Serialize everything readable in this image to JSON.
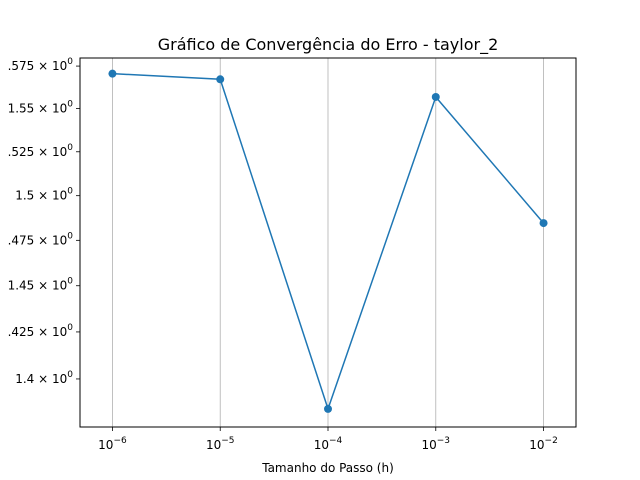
{
  "chart_data": {
    "type": "line",
    "title": "Gráfico de Convergência do Erro - taylor_2",
    "xlabel": "Tamanho do Passo (h)",
    "ylabel": "",
    "x_scale": "log",
    "y_scale": "log",
    "x": [
      1e-06,
      1e-05,
      0.0001,
      0.001,
      0.01
    ],
    "x_tick_values": [
      1e-06,
      1e-05,
      0.0001,
      0.001,
      0.01
    ],
    "x_tick_bases": [
      "10",
      "10",
      "10",
      "10",
      "10"
    ],
    "x_tick_exponents": [
      "−6",
      "−5",
      "−4",
      "−3",
      "−2"
    ],
    "xlim": [
      5e-07,
      0.02
    ],
    "series": [
      {
        "values": [
          1.5705,
          1.5672,
          1.3843,
          1.5568,
          1.4846
        ],
        "color": "#1f77b4",
        "marker": "circle"
      }
    ],
    "y_ticks": [
      {
        "value": 1.4,
        "label": "1.4 × 10",
        "exp": "0"
      },
      {
        "value": 1.425,
        "label": ".425 × 10",
        "exp": "0"
      },
      {
        "value": 1.45,
        "label": "1.45 × 10",
        "exp": "0"
      },
      {
        "value": 1.475,
        "label": ".475 × 10",
        "exp": "0"
      },
      {
        "value": 1.5,
        "label": "1.5 × 10",
        "exp": "0"
      },
      {
        "value": 1.525,
        "label": ".525 × 10",
        "exp": "0"
      },
      {
        "value": 1.55,
        "label": "1.55 × 10",
        "exp": "0"
      },
      {
        "value": 1.575,
        "label": ".575 × 10",
        "exp": "0"
      }
    ],
    "ylim": [
      1.3749,
      1.5798
    ],
    "grid": "x-major",
    "grid_color": "#b0b0b0",
    "legend": "none"
  }
}
